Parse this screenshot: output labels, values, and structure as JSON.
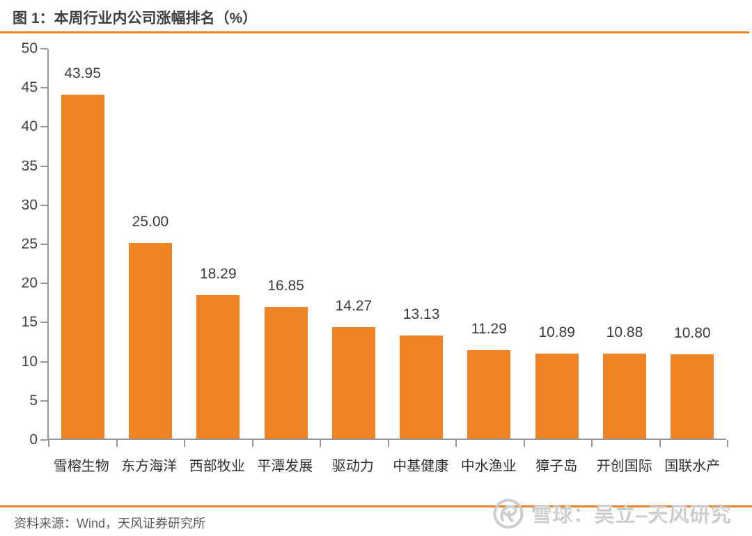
{
  "figure": {
    "title": "图 1：本周行业内公司涨幅排名（%）",
    "source": "资料来源：Wind，天风证券研究所"
  },
  "watermark": {
    "logo": "xueqiu-snowball-logo",
    "text": "雪球：吴立–天风研究"
  },
  "colors": {
    "bar": "#f08424",
    "rule": "#ee8125",
    "axis": "#969696",
    "tick_label": "#404040",
    "value_label": "#3a3a3a",
    "title": "#3f3f3f",
    "source_text": "#595959",
    "watermark": "#d0d0d0",
    "background": "#ffffff"
  },
  "chart_data": {
    "type": "bar",
    "title": "本周行业内公司涨幅排名（%）",
    "categories": [
      "雪榕生物",
      "东方海洋",
      "西部牧业",
      "平潭发展",
      "驱动力",
      "中基健康",
      "中水渔业",
      "獐子岛",
      "开创国际",
      "国联水产"
    ],
    "values": [
      43.95,
      25.0,
      18.29,
      16.85,
      14.27,
      13.13,
      11.29,
      10.89,
      10.88,
      10.8
    ],
    "value_labels": [
      "43.95",
      "25.00",
      "18.29",
      "16.85",
      "14.27",
      "13.13",
      "11.29",
      "10.89",
      "10.88",
      "10.80"
    ],
    "xlabel": "",
    "ylabel": "",
    "ylim": [
      0,
      50
    ],
    "yticks": [
      0,
      5,
      10,
      15,
      20,
      25,
      30,
      35,
      40,
      45,
      50
    ],
    "grid": false,
    "legend": "none",
    "data_labels": "outside-end"
  }
}
